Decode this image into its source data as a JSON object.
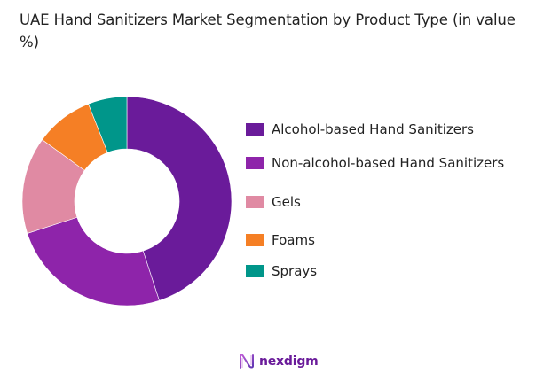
{
  "title": "UAE Hand Sanitizers Market Segmentation by Product Type (in value %)",
  "chart_data": {
    "type": "pie",
    "subtype": "donut",
    "title": "UAE Hand Sanitizers Market Segmentation by Product Type (in value %)",
    "categories": [
      "Alcohol-based Hand Sanitizers",
      "Non-alcohol-based Hand Sanitizers",
      "Gels",
      "Foams",
      "Sprays"
    ],
    "values": [
      45,
      25,
      15,
      9,
      6
    ],
    "colors": [
      "#6a1b9a",
      "#8e24aa",
      "#e08aa3",
      "#f57f25",
      "#00968a"
    ],
    "start_angle": "12 o'clock, clockwise",
    "legend_position": "right",
    "data_labels": false
  },
  "legend": {
    "items": [
      {
        "label": "Alcohol-based Hand Sanitizers",
        "color": "#6a1b9a"
      },
      {
        "label": "Non-alcohol-based Hand Sanitizers",
        "color": "#8e24aa"
      },
      {
        "label": "Gels",
        "color": "#e08aa3"
      },
      {
        "label": "Foams",
        "color": "#f57f25"
      },
      {
        "label": "Sprays",
        "color": "#00968a"
      }
    ]
  },
  "brand": {
    "name": "nexdigm",
    "color": "#6a1b9a"
  }
}
